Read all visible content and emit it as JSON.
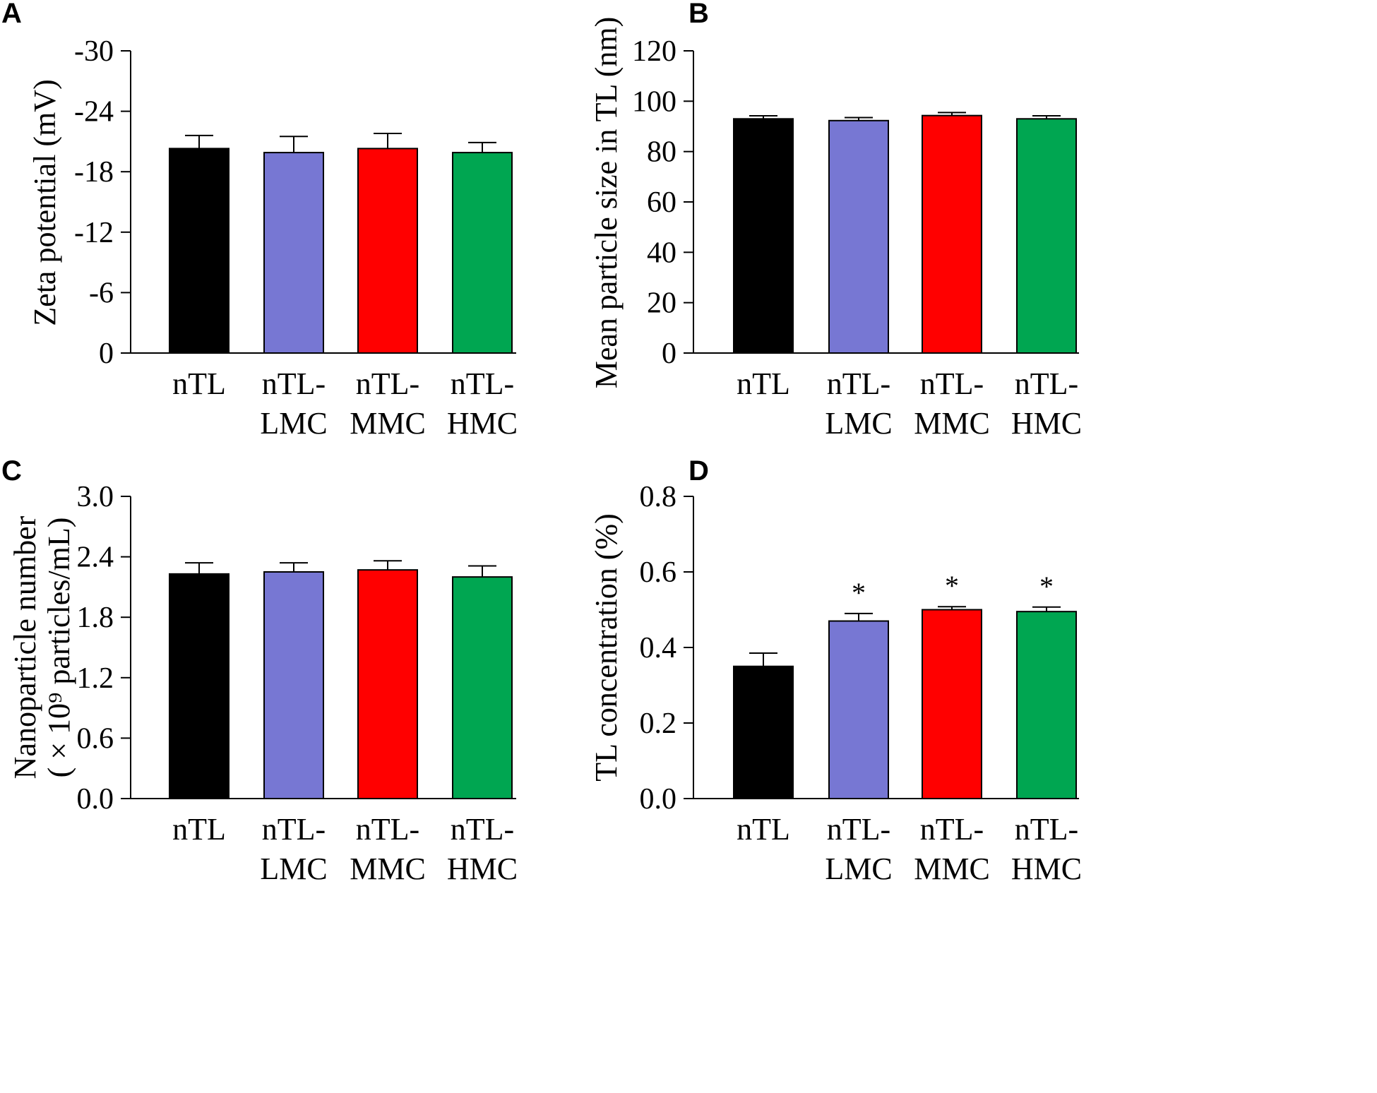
{
  "chart_data": [
    {
      "panel": "A",
      "type": "bar",
      "categories": [
        [
          "nTL"
        ],
        [
          "nTL-",
          "LMC"
        ],
        [
          "nTL-",
          "MMC"
        ],
        [
          "nTL-",
          "HMC"
        ]
      ],
      "values": [
        -20.3,
        -19.9,
        -20.3,
        -19.9
      ],
      "errors": [
        1.3,
        1.6,
        1.5,
        1.0
      ],
      "colors": [
        "#000000",
        "#7777d3",
        "#ff0000",
        "#00a651"
      ],
      "ylabel": [
        "Zeta potential (mV)"
      ],
      "ylim": [
        0,
        -30
      ],
      "ticks": [
        0,
        -6,
        -12,
        -18,
        -24,
        -30
      ],
      "tick_labels": [
        "0",
        "-6",
        "-12",
        "-18",
        "-24",
        "-30"
      ],
      "significance": [
        "",
        "",
        "",
        ""
      ]
    },
    {
      "panel": "B",
      "type": "bar",
      "categories": [
        [
          "nTL"
        ],
        [
          "nTL-",
          "LMC"
        ],
        [
          "nTL-",
          "MMC"
        ],
        [
          "nTL-",
          "HMC"
        ]
      ],
      "values": [
        93,
        92.3,
        94.3,
        93
      ],
      "errors": [
        1.2,
        1.2,
        1.2,
        1.2
      ],
      "colors": [
        "#000000",
        "#7777d3",
        "#ff0000",
        "#00a651"
      ],
      "ylabel": [
        "Mean particle size in TL (nm)"
      ],
      "ylim": [
        0,
        120
      ],
      "ticks": [
        0,
        20,
        40,
        60,
        80,
        100,
        120
      ],
      "tick_labels": [
        "0",
        "20",
        "40",
        "60",
        "80",
        "100",
        "120"
      ],
      "significance": [
        "",
        "",
        "",
        ""
      ]
    },
    {
      "panel": "C",
      "type": "bar",
      "categories": [
        [
          "nTL"
        ],
        [
          "nTL-",
          "LMC"
        ],
        [
          "nTL-",
          "MMC"
        ],
        [
          "nTL-",
          "HMC"
        ]
      ],
      "values": [
        2.23,
        2.25,
        2.27,
        2.2
      ],
      "errors": [
        0.11,
        0.09,
        0.09,
        0.11
      ],
      "colors": [
        "#000000",
        "#7777d3",
        "#ff0000",
        "#00a651"
      ],
      "ylabel": [
        "Nanoparticle number",
        "( × 10⁹ particles/mL)"
      ],
      "ylim": [
        0,
        3.0
      ],
      "ticks": [
        0,
        0.6,
        1.2,
        1.8,
        2.4,
        3.0
      ],
      "tick_labels": [
        "0.0",
        "0.6",
        "1.2",
        "1.8",
        "2.4",
        "3.0"
      ],
      "significance": [
        "",
        "",
        "",
        ""
      ]
    },
    {
      "panel": "D",
      "type": "bar",
      "categories": [
        [
          "nTL"
        ],
        [
          "nTL-",
          "LMC"
        ],
        [
          "nTL-",
          "MMC"
        ],
        [
          "nTL-",
          "HMC"
        ]
      ],
      "values": [
        0.35,
        0.47,
        0.5,
        0.495
      ],
      "errors": [
        0.035,
        0.02,
        0.008,
        0.012
      ],
      "colors": [
        "#000000",
        "#7777d3",
        "#ff0000",
        "#00a651"
      ],
      "ylabel": [
        "TL concentration (%)"
      ],
      "ylim": [
        0,
        0.8
      ],
      "ticks": [
        0,
        0.2,
        0.4,
        0.6,
        0.8
      ],
      "tick_labels": [
        "0.0",
        "0.2",
        "0.4",
        "0.6",
        "0.8"
      ],
      "significance": [
        "",
        "*",
        "*",
        "*"
      ]
    }
  ]
}
